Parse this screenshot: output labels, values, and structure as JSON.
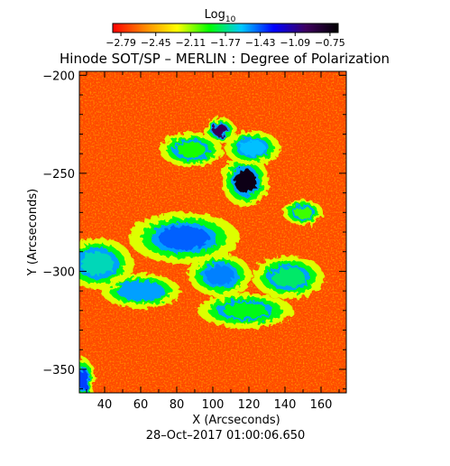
{
  "chart_data": {
    "type": "heatmap",
    "title": "Hinode SOT/SP – MERLIN : Degree of Polarization",
    "xlabel": "X (Arcseconds)",
    "ylabel": "Y (Arcseconds)",
    "timestamp": "28–Oct–2017 01:00:06.650",
    "xlim": [
      26,
      174
    ],
    "ylim": [
      -362,
      -198
    ],
    "xticks": [
      40,
      60,
      80,
      100,
      120,
      140,
      160
    ],
    "yticks": [
      -200,
      -250,
      -300,
      -350
    ],
    "colorbar": {
      "label_base": "Log",
      "label_sub": "10",
      "range": [
        -2.87,
        -0.67
      ],
      "ticks": [
        "−2.79",
        "−2.45",
        "−2.11",
        "−1.77",
        "−1.43",
        "−1.09",
        "−0.75"
      ],
      "tick_values": [
        -2.79,
        -2.45,
        -2.11,
        -1.77,
        -1.43,
        -1.09,
        -0.75
      ],
      "colors": [
        "#ff0000",
        "#ff8800",
        "#ffff00",
        "#00ff00",
        "#00c8ff",
        "#0000ff",
        "#3d005e",
        "#000000"
      ]
    },
    "features": [
      {
        "x": 118,
        "y": -254,
        "rx": 6,
        "ry": 6,
        "level": -0.75
      },
      {
        "x": 104,
        "y": -228,
        "rx": 4,
        "ry": 3,
        "level": -0.95
      },
      {
        "x": 84,
        "y": -283,
        "rx": 14,
        "ry": 6,
        "level": -1.45
      },
      {
        "x": 60,
        "y": -310,
        "rx": 10,
        "ry": 4,
        "level": -1.55
      },
      {
        "x": 104,
        "y": -302,
        "rx": 8,
        "ry": 5,
        "level": -1.5
      },
      {
        "x": 122,
        "y": -237,
        "rx": 7,
        "ry": 4,
        "level": -1.6
      },
      {
        "x": 36,
        "y": -296,
        "rx": 9,
        "ry": 6,
        "level": -1.7
      },
      {
        "x": 142,
        "y": -303,
        "rx": 9,
        "ry": 5,
        "level": -1.8
      },
      {
        "x": 118,
        "y": -320,
        "rx": 12,
        "ry": 4,
        "level": -1.9
      },
      {
        "x": 28,
        "y": -355,
        "rx": 3,
        "ry": 5,
        "level": -1.4
      },
      {
        "x": 88,
        "y": -238,
        "rx": 8,
        "ry": 4,
        "level": -1.95
      },
      {
        "x": 150,
        "y": -270,
        "rx": 5,
        "ry": 3,
        "level": -2.0
      }
    ]
  }
}
